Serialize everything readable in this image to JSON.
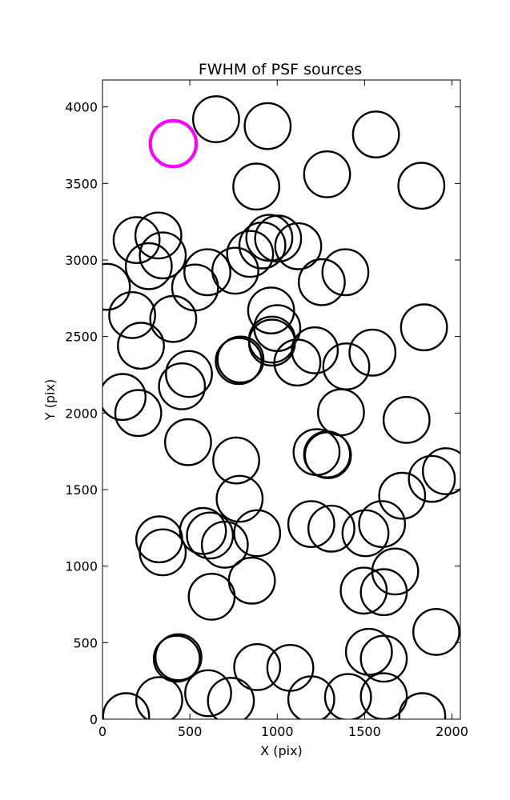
{
  "chart_data": {
    "type": "scatter",
    "title": "FWHM of PSF sources",
    "xlabel": "X (pix)",
    "ylabel": "Y (pix)",
    "xlim": [
      0,
      2048
    ],
    "ylim": [
      0,
      4176
    ],
    "xticks": [
      "0",
      "500",
      "1000",
      "1500",
      "2000"
    ],
    "xtick_values": [
      0,
      500,
      1000,
      1500,
      2000
    ],
    "yticks": [
      "0",
      "500",
      "1000",
      "1500",
      "2000",
      "2500",
      "3000",
      "3500",
      "4000"
    ],
    "ytick_values": [
      0,
      500,
      1000,
      1500,
      2000,
      2500,
      3000,
      3500,
      4000
    ],
    "grid": false,
    "marker": "open-circle",
    "marker_radius_pix": 150,
    "colors": {
      "default": "#000000",
      "highlight": "#ff00ff"
    },
    "series": [
      {
        "points": [
          [
            650,
            3920
          ],
          [
            945,
            3875
          ],
          [
            1565,
            3820
          ],
          [
            880,
            3480
          ],
          [
            1285,
            3560
          ],
          [
            1825,
            3485
          ],
          [
            195,
            3130
          ],
          [
            320,
            3160
          ],
          [
            265,
            2960
          ],
          [
            345,
            3030
          ],
          [
            25,
            2825
          ],
          [
            600,
            2920
          ],
          [
            530,
            2820
          ],
          [
            760,
            2930
          ],
          [
            845,
            3040
          ],
          [
            915,
            3095
          ],
          [
            955,
            3145
          ],
          [
            1005,
            3140
          ],
          [
            1120,
            3090
          ],
          [
            1255,
            2855
          ],
          [
            1390,
            2920
          ],
          [
            170,
            2640
          ],
          [
            405,
            2615
          ],
          [
            220,
            2440
          ],
          [
            965,
            2670
          ],
          [
            1000,
            2555
          ],
          [
            970,
            2480
          ],
          [
            970,
            2460
          ],
          [
            1215,
            2410
          ],
          [
            1545,
            2395
          ],
          [
            1840,
            2560
          ],
          [
            780,
            2340
          ],
          [
            790,
            2350
          ],
          [
            1115,
            2330
          ],
          [
            1395,
            2305
          ],
          [
            495,
            2255
          ],
          [
            455,
            2175
          ],
          [
            115,
            2105
          ],
          [
            205,
            2000
          ],
          [
            1365,
            2005
          ],
          [
            1740,
            1955
          ],
          [
            490,
            1810
          ],
          [
            765,
            1690
          ],
          [
            1225,
            1745
          ],
          [
            1285,
            1730
          ],
          [
            1290,
            1725
          ],
          [
            1885,
            1570
          ],
          [
            1965,
            1620
          ],
          [
            1715,
            1460
          ],
          [
            785,
            1440
          ],
          [
            1600,
            1275
          ],
          [
            1505,
            1215
          ],
          [
            1195,
            1275
          ],
          [
            1310,
            1245
          ],
          [
            325,
            1175
          ],
          [
            345,
            1090
          ],
          [
            575,
            1230
          ],
          [
            615,
            1200
          ],
          [
            700,
            1140
          ],
          [
            885,
            1215
          ],
          [
            1495,
            840
          ],
          [
            1610,
            830
          ],
          [
            1675,
            965
          ],
          [
            855,
            905
          ],
          [
            625,
            800
          ],
          [
            425,
            395
          ],
          [
            435,
            405
          ],
          [
            1525,
            440
          ],
          [
            1610,
            395
          ],
          [
            1910,
            570
          ],
          [
            885,
            340
          ],
          [
            1075,
            335
          ],
          [
            325,
            125
          ],
          [
            605,
            170
          ],
          [
            735,
            120
          ],
          [
            1195,
            130
          ],
          [
            1405,
            145
          ],
          [
            1610,
            150
          ],
          [
            135,
            20
          ],
          [
            1830,
            20
          ]
        ]
      },
      {
        "points": [
          [
            405,
            3760
          ]
        ]
      }
    ]
  }
}
